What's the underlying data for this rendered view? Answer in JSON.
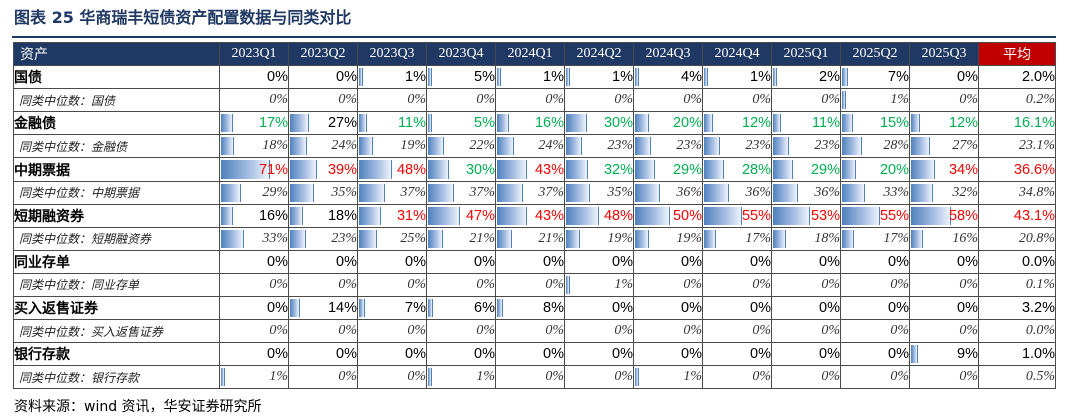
{
  "title": "图表 25 华商瑞丰短债资产配置数据与同类对比",
  "header": {
    "first": "资产",
    "quarters": [
      "2023Q1",
      "2023Q2",
      "2023Q3",
      "2023Q4",
      "2024Q1",
      "2024Q2",
      "2024Q3",
      "2024Q4",
      "2025Q1",
      "2025Q2",
      "2025Q3"
    ],
    "avg": "平均"
  },
  "rows": [
    {
      "label": "国债",
      "type": "main",
      "values": [
        "0%",
        "0%",
        "1%",
        "5%",
        "1%",
        "1%",
        "4%",
        "1%",
        "2%",
        "7%",
        "0%"
      ],
      "fill": [
        0,
        0,
        1,
        5,
        1,
        1,
        4,
        1,
        2,
        7,
        0
      ],
      "colors": [
        "",
        "",
        "",
        "",
        "",
        "",
        "",
        "",
        "",
        "",
        ""
      ],
      "avg": "2.0%",
      "avg_color": ""
    },
    {
      "label": "同类中位数：国债",
      "type": "med",
      "values": [
        "0%",
        "0%",
        "0%",
        "0%",
        "0%",
        "0%",
        "0%",
        "0%",
        "0%",
        "1%",
        "0%"
      ],
      "fill": [
        0,
        0,
        0,
        0,
        0,
        0,
        0,
        0,
        0,
        1,
        0
      ],
      "avg": "0.2%"
    },
    {
      "label": "金融债",
      "type": "main",
      "values": [
        "17%",
        "27%",
        "11%",
        "5%",
        "16%",
        "30%",
        "20%",
        "12%",
        "11%",
        "15%",
        "12%"
      ],
      "fill": [
        17,
        27,
        11,
        5,
        16,
        30,
        20,
        12,
        11,
        15,
        12
      ],
      "colors": [
        "green",
        "",
        "green",
        "green",
        "green",
        "green",
        "green",
        "green",
        "green",
        "green",
        "green"
      ],
      "avg": "16.1%",
      "avg_color": "green"
    },
    {
      "label": "同类中位数：金融债",
      "type": "med",
      "values": [
        "18%",
        "24%",
        "19%",
        "22%",
        "24%",
        "23%",
        "23%",
        "23%",
        "23%",
        "28%",
        "27%"
      ],
      "fill": [
        18,
        24,
        19,
        22,
        24,
        23,
        23,
        23,
        23,
        28,
        27
      ],
      "avg": "23.1%"
    },
    {
      "label": "中期票据",
      "type": "main",
      "values": [
        "71%",
        "39%",
        "48%",
        "30%",
        "43%",
        "32%",
        "29%",
        "28%",
        "29%",
        "20%",
        "34%"
      ],
      "fill": [
        71,
        39,
        48,
        30,
        43,
        32,
        29,
        28,
        29,
        20,
        34
      ],
      "colors": [
        "red",
        "red",
        "red",
        "green",
        "red",
        "green",
        "green",
        "green",
        "green",
        "green",
        "red"
      ],
      "avg": "36.6%",
      "avg_color": "red"
    },
    {
      "label": "同类中位数：中期票据",
      "type": "med",
      "values": [
        "29%",
        "35%",
        "37%",
        "37%",
        "37%",
        "35%",
        "36%",
        "36%",
        "36%",
        "33%",
        "32%"
      ],
      "fill": [
        29,
        35,
        37,
        37,
        37,
        35,
        36,
        36,
        36,
        33,
        32
      ],
      "avg": "34.8%"
    },
    {
      "label": "短期融资券",
      "type": "main",
      "values": [
        "16%",
        "18%",
        "31%",
        "47%",
        "43%",
        "48%",
        "50%",
        "55%",
        "53%",
        "55%",
        "58%"
      ],
      "fill": [
        16,
        18,
        31,
        47,
        43,
        48,
        50,
        55,
        53,
        55,
        58
      ],
      "colors": [
        "",
        "",
        "red",
        "red",
        "red",
        "red",
        "red",
        "red",
        "red",
        "red",
        "red"
      ],
      "avg": "43.1%",
      "avg_color": "red"
    },
    {
      "label": "同类中位数：短期融资券",
      "type": "med",
      "values": [
        "33%",
        "23%",
        "25%",
        "21%",
        "21%",
        "19%",
        "19%",
        "17%",
        "18%",
        "17%",
        "16%"
      ],
      "fill": [
        33,
        23,
        25,
        21,
        21,
        19,
        19,
        17,
        18,
        17,
        16
      ],
      "avg": "20.8%"
    },
    {
      "label": "同业存单",
      "type": "main",
      "values": [
        "0%",
        "0%",
        "0%",
        "0%",
        "0%",
        "0%",
        "0%",
        "0%",
        "0%",
        "0%",
        "0%"
      ],
      "fill": [
        0,
        0,
        0,
        0,
        0,
        0,
        0,
        0,
        0,
        0,
        0
      ],
      "colors": [
        "",
        "",
        "",
        "",
        "",
        "",
        "",
        "",
        "",
        "",
        ""
      ],
      "avg": "0.0%",
      "avg_color": ""
    },
    {
      "label": "同类中位数：同业存单",
      "type": "med",
      "values": [
        "0%",
        "0%",
        "0%",
        "0%",
        "0%",
        "1%",
        "0%",
        "0%",
        "0%",
        "0%",
        "0%"
      ],
      "fill": [
        0,
        0,
        0,
        0,
        0,
        1,
        0,
        0,
        0,
        0,
        0
      ],
      "avg": "0.1%"
    },
    {
      "label": "买入返售证券",
      "type": "main",
      "values": [
        "0%",
        "14%",
        "7%",
        "6%",
        "8%",
        "0%",
        "0%",
        "0%",
        "0%",
        "0%",
        "0%"
      ],
      "fill": [
        0,
        14,
        7,
        6,
        8,
        0,
        0,
        0,
        0,
        0,
        0
      ],
      "colors": [
        "",
        "",
        "",
        "",
        "",
        "",
        "",
        "",
        "",
        "",
        ""
      ],
      "avg": "3.2%",
      "avg_color": ""
    },
    {
      "label": "同类中位数：买入返售证券",
      "type": "med",
      "values": [
        "0%",
        "0%",
        "0%",
        "0%",
        "0%",
        "0%",
        "0%",
        "0%",
        "0%",
        "0%",
        "0%"
      ],
      "fill": [
        0,
        0,
        0,
        0,
        0,
        0,
        0,
        0,
        0,
        0,
        0
      ],
      "avg": "0.0%"
    },
    {
      "label": "银行存款",
      "type": "main",
      "values": [
        "0%",
        "0%",
        "0%",
        "0%",
        "0%",
        "0%",
        "0%",
        "0%",
        "0%",
        "0%",
        "9%"
      ],
      "fill": [
        0,
        0,
        0,
        0,
        0,
        0,
        0,
        0,
        0,
        0,
        9
      ],
      "colors": [
        "",
        "",
        "",
        "",
        "",
        "",
        "",
        "",
        "",
        "",
        ""
      ],
      "avg": "1.0%",
      "avg_color": ""
    },
    {
      "label": "同类中位数：银行存款",
      "type": "med",
      "values": [
        "1%",
        "0%",
        "0%",
        "1%",
        "0%",
        "0%",
        "1%",
        "0%",
        "0%",
        "0%",
        "0%"
      ],
      "fill": [
        1,
        0,
        0,
        1,
        0,
        0,
        1,
        0,
        0,
        0,
        0
      ],
      "avg": "0.5%"
    }
  ],
  "source": "资料来源：wind 资讯，华安证券研究所"
}
